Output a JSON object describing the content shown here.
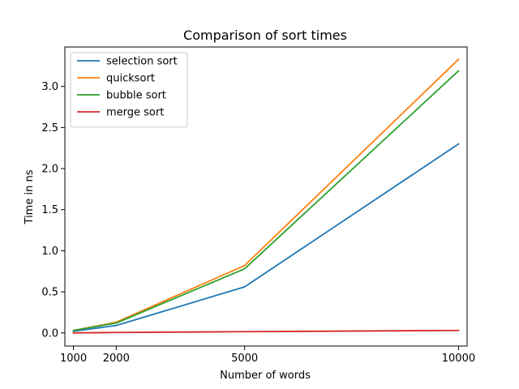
{
  "chart_data": {
    "type": "line",
    "title": "Comparison of sort times",
    "xlabel": "Number of words",
    "ylabel": "Time in ns",
    "x": [
      1000,
      2000,
      5000,
      10000
    ],
    "xticks": [
      1000,
      2000,
      5000,
      10000
    ],
    "xtick_labels": [
      "1000",
      "2000",
      "5000",
      "10000"
    ],
    "yticks": [
      0.0,
      0.5,
      1.0,
      1.5,
      2.0,
      2.5,
      3.0
    ],
    "ytick_labels": [
      "0.0",
      "0.5",
      "1.0",
      "1.5",
      "2.0",
      "2.5",
      "3.0"
    ],
    "xlim": [
      800,
      10200
    ],
    "ylim": [
      -0.16,
      3.48
    ],
    "grid": false,
    "legend_position": "top-left",
    "series": [
      {
        "name": "selection sort",
        "color": "#1f77b4",
        "values": [
          0.02,
          0.09,
          0.56,
          2.3
        ]
      },
      {
        "name": "quicksort",
        "color": "#ff7f0e",
        "values": [
          0.03,
          0.13,
          0.82,
          3.33
        ]
      },
      {
        "name": "bubble sort",
        "color": "#2ca02c",
        "values": [
          0.03,
          0.12,
          0.78,
          3.19
        ]
      },
      {
        "name": "merge sort",
        "color": "#d62728",
        "values": [
          0.0,
          0.005,
          0.015,
          0.03
        ]
      }
    ]
  }
}
